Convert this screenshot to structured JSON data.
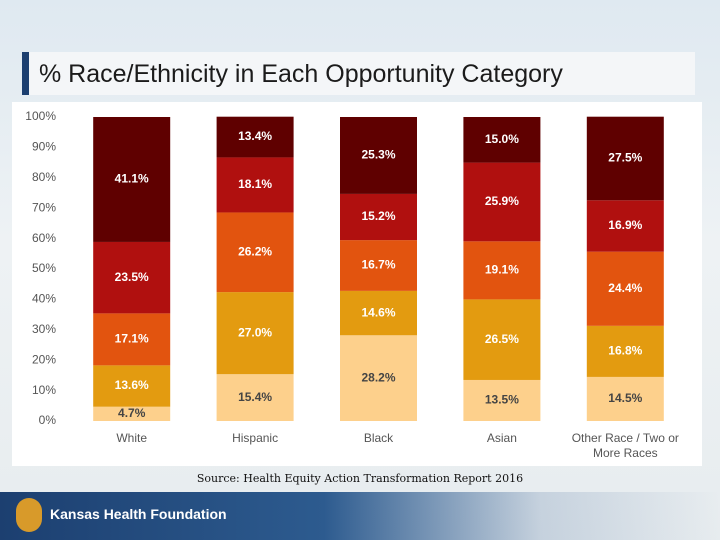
{
  "chart_data": {
    "type": "stacked_bar",
    "title": "% Race/Ethnicity in Each Opportunity Category",
    "source": "Source: Health Equity Action Transformation Report 2016",
    "categories": [
      "White",
      "Hispanic",
      "Black",
      "Asian",
      "Other Race / Two or More Races"
    ],
    "series": [
      {
        "color": "#fdd08c",
        "values": [
          4.7,
          15.4,
          28.2,
          13.5,
          14.5
        ],
        "value_labels": [
          "4.7%",
          "15.4%",
          "28.2%",
          "13.5%",
          "14.5%"
        ]
      },
      {
        "color": "#e39b10",
        "values": [
          13.6,
          27.0,
          14.6,
          26.5,
          16.8
        ],
        "value_labels": [
          "13.6%",
          "27.0%",
          "14.6%",
          "26.5%",
          "16.8%"
        ]
      },
      {
        "color": "#e2540f",
        "values": [
          17.1,
          26.2,
          16.7,
          19.1,
          24.4
        ],
        "value_labels": [
          "17.1%",
          "26.2%",
          "16.7%",
          "19.1%",
          "24.4%"
        ]
      },
      {
        "color": "#b0100f",
        "values": [
          23.5,
          18.1,
          15.2,
          25.9,
          16.9
        ],
        "value_labels": [
          "23.5%",
          "18.1%",
          "15.2%",
          "25.9%",
          "16.9%"
        ]
      },
      {
        "color": "#5f0000",
        "values": [
          41.1,
          13.4,
          25.3,
          15.0,
          27.5
        ],
        "value_labels": [
          "41.1%",
          "13.4%",
          "25.3%",
          "15.0%",
          "27.5%"
        ]
      }
    ],
    "ylim": [
      0,
      100
    ],
    "yticks": [
      {
        "value": 0,
        "label": "0%"
      },
      {
        "value": 10,
        "label": "10%"
      },
      {
        "value": 20,
        "label": "20%"
      },
      {
        "value": 30,
        "label": "30%"
      },
      {
        "value": 40,
        "label": "40%"
      },
      {
        "value": 50,
        "label": "50%"
      },
      {
        "value": 60,
        "label": "60%"
      },
      {
        "value": 70,
        "label": "70%"
      },
      {
        "value": 80,
        "label": "80%"
      },
      {
        "value": 90,
        "label": "90%"
      },
      {
        "value": 100,
        "label": "100%"
      }
    ],
    "grid": false
  },
  "footer": {
    "logo": "Kansas Health Foundation"
  }
}
